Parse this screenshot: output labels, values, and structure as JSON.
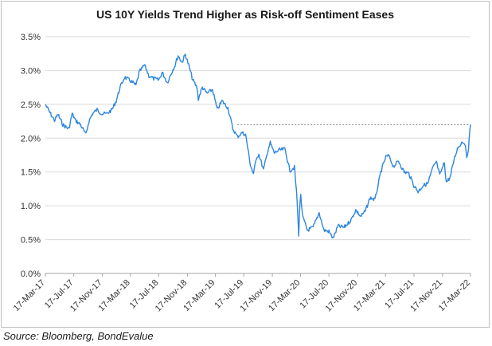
{
  "chart_data": {
    "type": "line",
    "title": "US 10Y Yields Trend Higher as Risk-off Sentiment Eases",
    "xlabel": "",
    "ylabel": "",
    "ylim": [
      0,
      3.5
    ],
    "y_ticks": [
      "0.0%",
      "0.5%",
      "1.0%",
      "1.5%",
      "2.0%",
      "2.5%",
      "3.0%",
      "3.5%"
    ],
    "y_tick_values": [
      0,
      0.5,
      1.0,
      1.5,
      2.0,
      2.5,
      3.0,
      3.5
    ],
    "x_range": [
      "2017-03-17",
      "2022-03-17"
    ],
    "x_ticks": [
      "17-Mar-17",
      "17-Jul-17",
      "17-Nov-17",
      "17-Mar-18",
      "17-Jul-18",
      "17-Nov-18",
      "17-Mar-19",
      "17-Jul-19",
      "17-Nov-19",
      "17-Mar-20",
      "17-Jul-20",
      "17-Nov-20",
      "17-Mar-21",
      "17-Jul-21",
      "17-Nov-21",
      "17-Mar-22"
    ],
    "x_tick_dates": [
      "2017-03-17",
      "2017-07-17",
      "2017-11-17",
      "2018-03-17",
      "2018-07-17",
      "2018-11-17",
      "2019-03-17",
      "2019-07-17",
      "2019-11-17",
      "2020-03-17",
      "2020-07-17",
      "2020-11-17",
      "2021-03-17",
      "2021-07-17",
      "2021-11-17",
      "2022-03-17"
    ],
    "grid": "horizontal",
    "legend": "none",
    "series": [
      {
        "color": "#2e86de",
        "x": [
          "2017-03-17",
          "2017-04-05",
          "2017-04-25",
          "2017-05-10",
          "2017-05-31",
          "2017-06-15",
          "2017-06-26",
          "2017-07-10",
          "2017-07-25",
          "2017-08-15",
          "2017-09-07",
          "2017-09-20",
          "2017-10-05",
          "2017-10-25",
          "2017-11-15",
          "2017-12-05",
          "2017-12-28",
          "2018-01-15",
          "2018-02-01",
          "2018-02-20",
          "2018-03-17",
          "2018-04-10",
          "2018-04-25",
          "2018-05-17",
          "2018-06-05",
          "2018-06-25",
          "2018-07-17",
          "2018-08-01",
          "2018-08-23",
          "2018-09-10",
          "2018-09-25",
          "2018-10-08",
          "2018-10-25",
          "2018-11-08",
          "2018-11-25",
          "2018-12-10",
          "2018-12-28",
          "2019-01-03",
          "2019-01-20",
          "2019-02-10",
          "2019-03-05",
          "2019-03-25",
          "2019-04-15",
          "2019-05-10",
          "2019-05-31",
          "2019-06-20",
          "2019-07-10",
          "2019-07-25",
          "2019-08-15",
          "2019-08-28",
          "2019-09-10",
          "2019-09-20",
          "2019-10-10",
          "2019-10-30",
          "2019-11-08",
          "2019-11-25",
          "2019-12-15",
          "2020-01-10",
          "2020-01-31",
          "2020-02-20",
          "2020-03-02",
          "2020-03-09",
          "2020-03-12",
          "2020-03-18",
          "2020-03-25",
          "2020-04-15",
          "2020-05-10",
          "2020-06-05",
          "2020-06-25",
          "2020-07-17",
          "2020-08-04",
          "2020-08-25",
          "2020-09-20",
          "2020-10-20",
          "2020-11-09",
          "2020-11-30",
          "2020-12-20",
          "2021-01-10",
          "2021-01-31",
          "2021-02-25",
          "2021-03-18",
          "2021-03-31",
          "2021-04-20",
          "2021-05-12",
          "2021-06-05",
          "2021-06-25",
          "2021-07-17",
          "2021-08-04",
          "2021-08-25",
          "2021-09-15",
          "2021-10-05",
          "2021-10-21",
          "2021-11-05",
          "2021-11-25",
          "2021-12-03",
          "2021-12-20",
          "2022-01-05",
          "2022-01-20",
          "2022-02-10",
          "2022-02-20",
          "2022-03-01",
          "2022-03-08",
          "2022-03-17"
        ],
        "values": [
          2.5,
          2.38,
          2.26,
          2.35,
          2.2,
          2.16,
          2.14,
          2.36,
          2.26,
          2.2,
          2.05,
          2.25,
          2.36,
          2.42,
          2.36,
          2.36,
          2.42,
          2.55,
          2.75,
          2.9,
          2.85,
          2.78,
          2.98,
          3.08,
          2.92,
          2.88,
          2.86,
          2.97,
          2.82,
          2.97,
          3.08,
          3.22,
          3.12,
          3.24,
          3.05,
          2.86,
          2.75,
          2.58,
          2.75,
          2.66,
          2.72,
          2.42,
          2.55,
          2.45,
          2.14,
          2.02,
          2.08,
          2.05,
          1.6,
          1.47,
          1.72,
          1.76,
          1.53,
          1.84,
          1.93,
          1.78,
          1.82,
          1.84,
          1.52,
          1.57,
          1.1,
          0.54,
          0.88,
          1.18,
          0.85,
          0.64,
          0.68,
          0.9,
          0.64,
          0.62,
          0.52,
          0.7,
          0.68,
          0.79,
          0.94,
          0.84,
          0.92,
          1.12,
          1.09,
          1.5,
          1.72,
          1.74,
          1.58,
          1.66,
          1.5,
          1.48,
          1.3,
          1.21,
          1.3,
          1.33,
          1.55,
          1.65,
          1.45,
          1.64,
          1.35,
          1.42,
          1.68,
          1.85,
          1.95,
          1.93,
          1.72,
          1.85,
          2.2
        ]
      }
    ],
    "reference_line": {
      "value": 2.2,
      "from": "2019-06-20",
      "to": "2022-03-17",
      "style": "dotted"
    }
  },
  "source_note": "Source: Bloomberg, BondEvalue"
}
